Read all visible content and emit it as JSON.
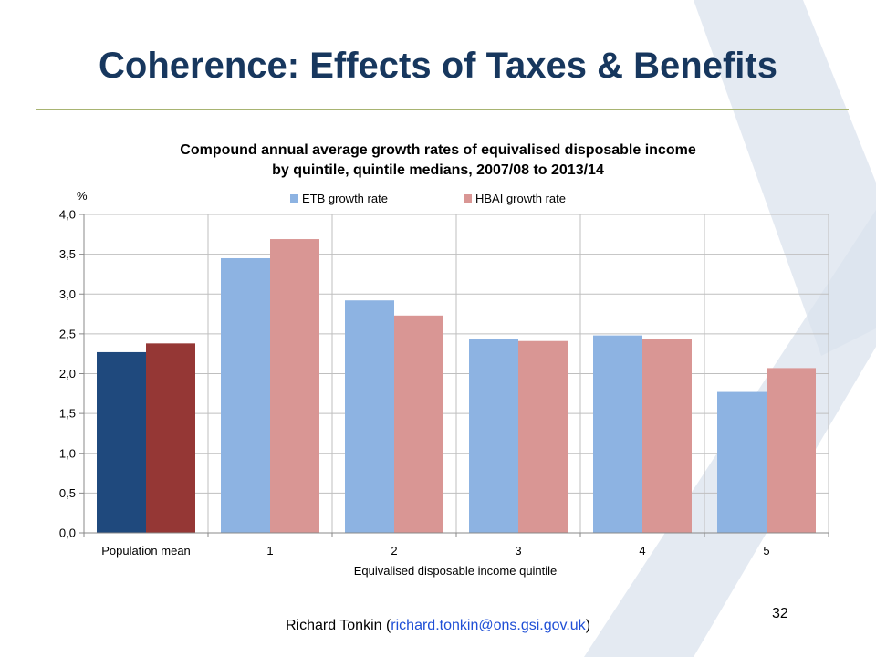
{
  "slide": {
    "title": "Coherence: Effects of Taxes & Benefits",
    "footer_prefix": "Richard Tonkin (",
    "footer_email": "richard.tonkin@ons.gsi.gov.uk",
    "footer_suffix": ")",
    "page_number": "32"
  },
  "chart_data": {
    "type": "bar",
    "title": "Compound annual average growth rates of equivalised disposable income",
    "subtitle": "by quintile, quintile medians, 2007/08 to 2013/14",
    "xlabel": "Equivalised disposable income quintile",
    "ylabel": "%",
    "ylim": [
      0,
      4
    ],
    "ytick_step": 0.5,
    "ytick_labels": [
      "0,0",
      "0,5",
      "1,0",
      "1,5",
      "2,0",
      "2,5",
      "3,0",
      "3,5",
      "4,0"
    ],
    "categories": [
      "Population mean",
      "1",
      "2",
      "3",
      "4",
      "5"
    ],
    "grid": true,
    "legend_position": "top-center",
    "series": [
      {
        "name": "ETB growth rate",
        "color": "#8db3e2",
        "highlight_color": "#1f497d",
        "values": [
          2.27,
          3.45,
          2.92,
          2.44,
          2.48,
          1.77
        ]
      },
      {
        "name": "HBAI growth rate",
        "color": "#d99694",
        "highlight_color": "#953735",
        "values": [
          2.38,
          3.69,
          2.73,
          2.41,
          2.43,
          2.07
        ]
      }
    ]
  },
  "colors": {
    "title": "#17375e",
    "rule": "#a8b472",
    "watermark": "#dbe3ee"
  }
}
